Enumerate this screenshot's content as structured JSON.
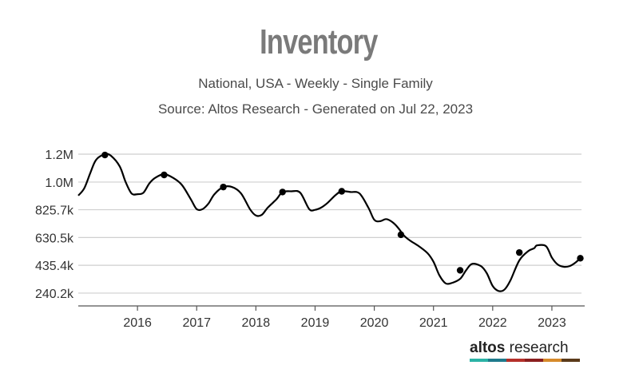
{
  "chart_data": {
    "type": "line",
    "title": "Inventory",
    "subtitle": [
      "National, USA - Weekly - Single Family",
      "Source: Altos Research - Generated on Jul 22, 2023"
    ],
    "xlabel": "",
    "ylabel": "",
    "x_ticks": [
      "2016",
      "2017",
      "2018",
      "2019",
      "2020",
      "2021",
      "2022",
      "2023"
    ],
    "y_ticks": [
      "240.2k",
      "435.4k",
      "630.5k",
      "825.7k",
      "1.0M",
      "1.2M"
    ],
    "y_tick_values": [
      240200,
      435400,
      630500,
      825700,
      1020000,
      1216000
    ],
    "xlim": [
      2015.0,
      2023.5
    ],
    "ylim": [
      150000,
      1300000
    ],
    "grid": true,
    "series": [
      {
        "name": "",
        "x": [
          2015.0,
          2015.1,
          2015.2,
          2015.3,
          2015.45,
          2015.55,
          2015.7,
          2015.8,
          2015.9,
          2016.0,
          2016.1,
          2016.2,
          2016.3,
          2016.45,
          2016.6,
          2016.75,
          2016.9,
          2017.0,
          2017.1,
          2017.2,
          2017.3,
          2017.45,
          2017.6,
          2017.75,
          2017.9,
          2018.0,
          2018.1,
          2018.2,
          2018.35,
          2018.45,
          2018.6,
          2018.75,
          2018.9,
          2019.0,
          2019.1,
          2019.2,
          2019.35,
          2019.45,
          2019.6,
          2019.75,
          2019.9,
          2020.0,
          2020.1,
          2020.2,
          2020.3,
          2020.4,
          2020.5,
          2020.6,
          2020.75,
          2020.9,
          2021.0,
          2021.1,
          2021.2,
          2021.3,
          2021.45,
          2021.55,
          2021.65,
          2021.8,
          2021.9,
          2022.0,
          2022.1,
          2022.2,
          2022.3,
          2022.45,
          2022.6,
          2022.7,
          2022.75,
          2022.9,
          2023.0,
          2023.1,
          2023.2,
          2023.3,
          2023.4,
          2023.48
        ],
        "values": [
          925000,
          975000,
          1080000,
          1175000,
          1215000,
          1205000,
          1130000,
          1020000,
          940000,
          935000,
          945000,
          1010000,
          1050000,
          1075000,
          1050000,
          1000000,
          900000,
          830000,
          830000,
          870000,
          935000,
          985000,
          985000,
          940000,
          830000,
          785000,
          790000,
          840000,
          900000,
          950000,
          955000,
          945000,
          830000,
          825000,
          840000,
          870000,
          930000,
          955000,
          950000,
          940000,
          840000,
          755000,
          745000,
          760000,
          740000,
          700000,
          645000,
          610000,
          570000,
          520000,
          460000,
          365000,
          310000,
          310000,
          340000,
          400000,
          445000,
          430000,
          380000,
          290000,
          255000,
          265000,
          330000,
          470000,
          535000,
          555000,
          575000,
          570000,
          490000,
          440000,
          425000,
          430000,
          455000,
          485000
        ]
      }
    ],
    "markers": {
      "x": [
        2015.45,
        2016.45,
        2017.45,
        2018.45,
        2019.45,
        2020.45,
        2021.45,
        2022.45,
        2023.48
      ],
      "values": [
        1210000,
        1070000,
        985000,
        950000,
        955000,
        650000,
        400000,
        525000,
        485000
      ]
    },
    "colors": {
      "line": "#000000",
      "grid": "#cfcfcf",
      "title": "#7a7a7a",
      "axis": "#333333"
    }
  },
  "logo": {
    "bold": "altos",
    "light": " research",
    "colors": [
      "#2bb3a6",
      "#1f7a8c",
      "#b5302a",
      "#8a1f1f",
      "#d68a2b",
      "#5a3a1a"
    ]
  }
}
